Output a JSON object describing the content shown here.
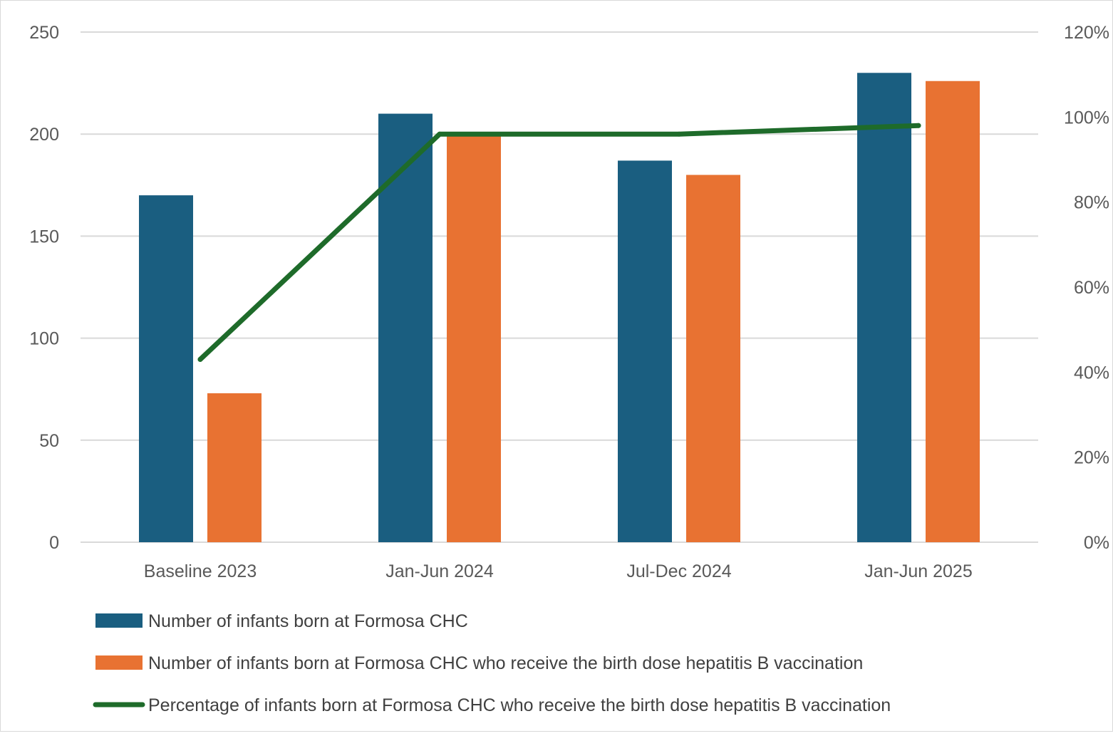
{
  "chart_data": {
    "type": "bar",
    "categories": [
      "Baseline 2023",
      "Jan-Jun 2024",
      "Jul-Dec 2024",
      "Jan-Jun 2025"
    ],
    "series": [
      {
        "name": "Number of infants born at Formosa CHC",
        "type": "bar",
        "axis": "left",
        "color": "#1a5e80",
        "values": [
          170,
          210,
          187,
          230
        ]
      },
      {
        "name": "Number of infants born at Formosa CHC who receive the birth dose hepatitis B vaccination",
        "type": "bar",
        "axis": "left",
        "color": "#e87232",
        "values": [
          73,
          200,
          180,
          226
        ]
      },
      {
        "name": "Percentage of infants born at Formosa CHC who receive the birth dose hepatitis B vaccination",
        "type": "line",
        "axis": "right",
        "color": "#1e6b2a",
        "values": [
          43,
          96,
          96,
          98
        ]
      }
    ],
    "y_left": {
      "min": 0,
      "max": 250,
      "ticks": [
        0,
        50,
        100,
        150,
        200,
        250
      ]
    },
    "y_right": {
      "min": 0,
      "max": 120,
      "ticks": [
        "0%",
        "20%",
        "40%",
        "60%",
        "80%",
        "100%",
        "120%"
      ]
    },
    "grid": true,
    "legend_position": "bottom"
  }
}
